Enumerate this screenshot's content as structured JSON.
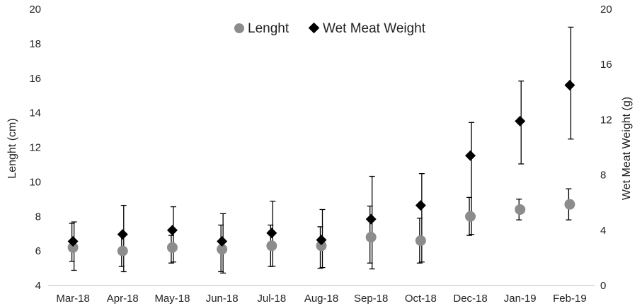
{
  "chart_data": {
    "type": "scatter",
    "categories": [
      "Mar-18",
      "Apr-18",
      "May-18",
      "Jun-18",
      "Jul-18",
      "Aug-18",
      "Sep-18",
      "Oct-18",
      "Dec-18",
      "Jan-19",
      "Feb-19"
    ],
    "series": [
      {
        "name": "Lenght",
        "axis": "left",
        "marker": "circle",
        "color": "#8c8c8c",
        "values": [
          6.2,
          6.0,
          6.2,
          6.1,
          6.3,
          6.3,
          6.8,
          6.6,
          8.0,
          8.4,
          8.7
        ],
        "err_low": [
          5.4,
          5.1,
          5.3,
          4.8,
          5.1,
          5.0,
          5.3,
          5.3,
          6.9,
          7.8,
          7.8
        ],
        "err_high": [
          7.6,
          7.0,
          6.9,
          7.5,
          7.5,
          7.4,
          8.6,
          7.9,
          9.1,
          9.0,
          9.6
        ]
      },
      {
        "name": "Wet Meat Weight",
        "axis": "right",
        "marker": "diamond",
        "color": "#000000",
        "values": [
          3.2,
          3.7,
          4.0,
          3.2,
          3.8,
          3.3,
          4.8,
          5.8,
          9.4,
          11.9,
          14.5
        ],
        "err_low": [
          1.1,
          1.0,
          1.7,
          0.9,
          1.4,
          1.3,
          1.2,
          1.7,
          3.7,
          8.8,
          10.6
        ],
        "err_high": [
          4.6,
          5.8,
          5.7,
          5.2,
          6.1,
          5.5,
          7.9,
          8.1,
          11.8,
          14.8,
          18.7
        ]
      }
    ],
    "y_left": {
      "label": "Lenght (cm)",
      "ylim": [
        4,
        20
      ],
      "ticks": [
        "4",
        "6",
        "8",
        "10",
        "12",
        "14",
        "16",
        "18",
        "20"
      ]
    },
    "y_right": {
      "label": "Wet Meat Weight (g)",
      "ylim": [
        0,
        20
      ],
      "ticks": [
        "0",
        "4",
        "8",
        "12",
        "16",
        "20"
      ]
    },
    "grid": false,
    "legend_position": "top-center"
  }
}
